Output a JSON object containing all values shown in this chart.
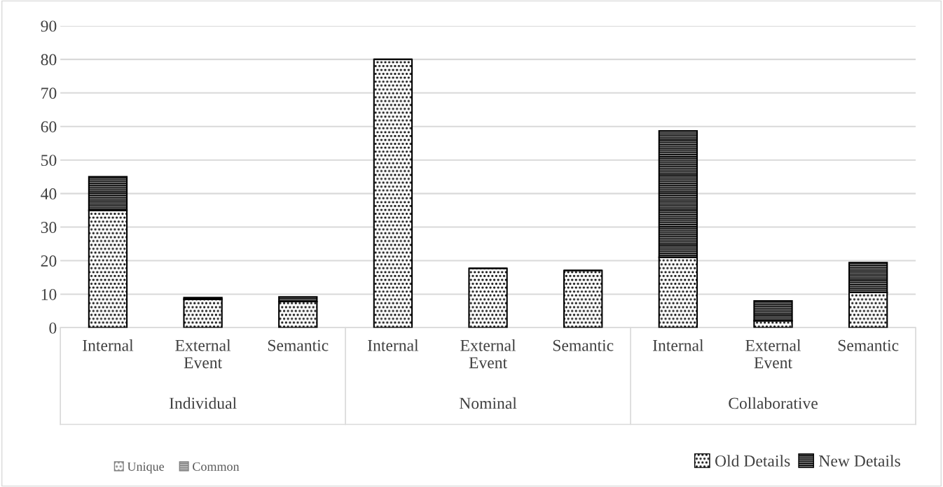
{
  "chart_data": {
    "type": "bar",
    "stacked": true,
    "categories": [
      "Internal",
      "External Event",
      "Semantic",
      "Internal",
      "External Event",
      "Semantic",
      "Internal",
      "External Event",
      "Semantic"
    ],
    "series": [
      {
        "name": "Old Details",
        "color": "#000000",
        "values": [
          35,
          8.5,
          7.8,
          80,
          17.7,
          17.1,
          21.0,
          2.1,
          10.5
        ]
      },
      {
        "name": "New Details",
        "color": "#000000",
        "values": [
          10,
          0.5,
          1.4,
          0,
          0,
          0,
          37.7,
          5.9,
          8.9
        ]
      }
    ],
    "annotations": [
      "Individual",
      "Nominal",
      "Collaborative",
      "Unique",
      "Common"
    ],
    "ylim": [
      0,
      90
    ],
    "yticks": [
      0,
      10,
      20,
      30,
      40,
      50,
      60,
      70,
      80,
      90
    ],
    "grid": "y",
    "legend": "bottom right"
  }
}
